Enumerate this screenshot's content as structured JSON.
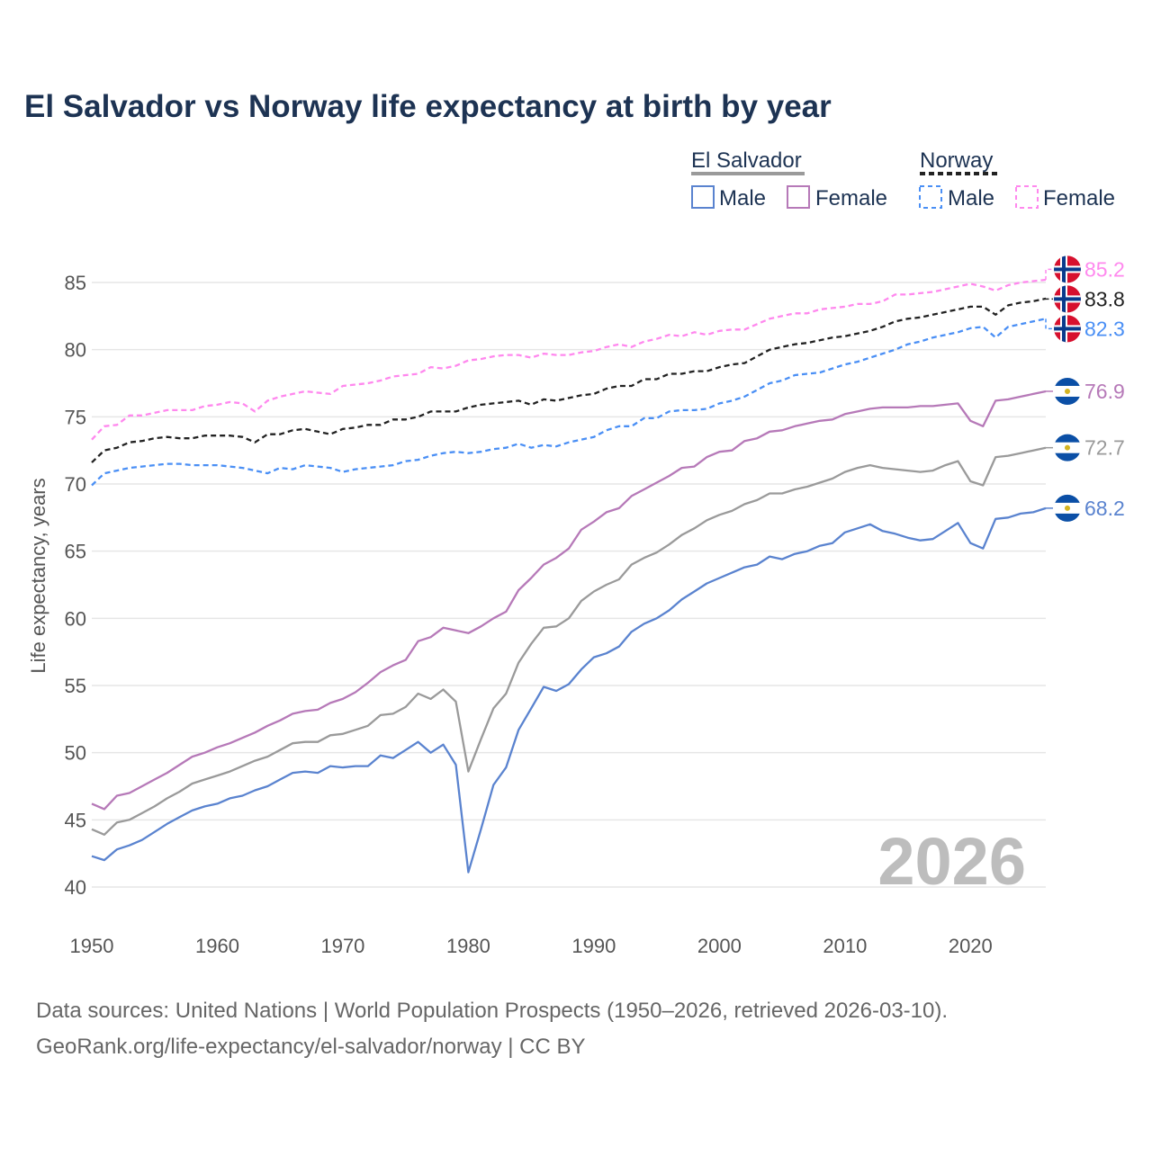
{
  "chart_data": {
    "type": "line",
    "title": "El Salvador vs Norway life expectancy at birth by year",
    "xlabel": "",
    "ylabel": "Life expectancy, years",
    "xlim": [
      1950,
      2026
    ],
    "ylim": [
      40,
      87
    ],
    "x_ticks": [
      1950,
      1960,
      1970,
      1980,
      1990,
      2000,
      2010,
      2020
    ],
    "y_ticks": [
      40,
      45,
      50,
      55,
      60,
      65,
      70,
      75,
      80,
      85
    ],
    "grid": true,
    "year_watermark": "2026",
    "legend": {
      "placement": "top-right",
      "groups": [
        {
          "country": "El Salvador",
          "items": [
            "Male",
            "Female"
          ]
        },
        {
          "country": "Norway",
          "items": [
            "Male",
            "Female"
          ]
        }
      ]
    },
    "x_start": 1950,
    "series": [
      {
        "name": "El Salvador Male",
        "country": "El Salvador",
        "flag": "el-salvador",
        "color": "#5a83cf",
        "dashed": false,
        "end_label": "68.2",
        "values": [
          42.3,
          42.0,
          42.8,
          43.1,
          43.5,
          44.1,
          44.7,
          45.2,
          45.7,
          46.0,
          46.2,
          46.6,
          46.8,
          47.2,
          47.5,
          48.0,
          48.5,
          48.6,
          48.5,
          49.0,
          48.9,
          49.0,
          49.0,
          49.8,
          49.6,
          50.2,
          50.8,
          50.0,
          50.6,
          49.1,
          41.1,
          44.3,
          47.6,
          48.9,
          51.7,
          53.3,
          54.9,
          54.6,
          55.1,
          56.2,
          57.1,
          57.4,
          57.9,
          59.0,
          59.6,
          60.0,
          60.6,
          61.4,
          62.0,
          62.6,
          63.0,
          63.4,
          63.8,
          64.0,
          64.6,
          64.4,
          64.8,
          65.0,
          65.4,
          65.6,
          66.4,
          66.7,
          67.0,
          66.5,
          66.3,
          66.0,
          65.8,
          65.9,
          66.5,
          67.1,
          65.6,
          65.2,
          67.4,
          67.5,
          67.8,
          67.9,
          68.2
        ]
      },
      {
        "name": "El Salvador Female",
        "country": "El Salvador",
        "flag": "el-salvador",
        "color": "#b679b8",
        "dashed": false,
        "end_label": "76.9",
        "values": [
          46.2,
          45.8,
          46.8,
          47.0,
          47.5,
          48.0,
          48.5,
          49.1,
          49.7,
          50.0,
          50.4,
          50.7,
          51.1,
          51.5,
          52.0,
          52.4,
          52.9,
          53.1,
          53.2,
          53.7,
          54.0,
          54.5,
          55.2,
          56.0,
          56.5,
          56.9,
          58.3,
          58.6,
          59.3,
          59.1,
          58.9,
          59.4,
          60.0,
          60.5,
          62.1,
          63.0,
          64.0,
          64.5,
          65.2,
          66.6,
          67.2,
          67.9,
          68.2,
          69.1,
          69.6,
          70.1,
          70.6,
          71.2,
          71.3,
          72.0,
          72.4,
          72.5,
          73.2,
          73.4,
          73.9,
          74.0,
          74.3,
          74.5,
          74.7,
          74.8,
          75.2,
          75.4,
          75.6,
          75.7,
          75.7,
          75.7,
          75.8,
          75.8,
          75.9,
          76.0,
          74.7,
          74.3,
          76.2,
          76.3,
          76.5,
          76.7,
          76.9
        ]
      },
      {
        "name": "El Salvador Total",
        "country": "El Salvador",
        "flag": "el-salvador",
        "color": "#9a9a9a",
        "dashed": false,
        "end_label": "72.7",
        "values": [
          44.3,
          43.9,
          44.8,
          45.0,
          45.5,
          46.0,
          46.6,
          47.1,
          47.7,
          48.0,
          48.3,
          48.6,
          49.0,
          49.4,
          49.7,
          50.2,
          50.7,
          50.8,
          50.8,
          51.3,
          51.4,
          51.7,
          52.0,
          52.8,
          52.9,
          53.4,
          54.4,
          54.0,
          54.7,
          53.8,
          48.6,
          51.0,
          53.3,
          54.4,
          56.7,
          58.1,
          59.3,
          59.4,
          60.0,
          61.3,
          62.0,
          62.5,
          62.9,
          64.0,
          64.5,
          64.9,
          65.5,
          66.2,
          66.7,
          67.3,
          67.7,
          68.0,
          68.5,
          68.8,
          69.3,
          69.3,
          69.6,
          69.8,
          70.1,
          70.4,
          70.9,
          71.2,
          71.4,
          71.2,
          71.1,
          71.0,
          70.9,
          71.0,
          71.4,
          71.7,
          70.2,
          69.9,
          72.0,
          72.1,
          72.3,
          72.5,
          72.7
        ]
      },
      {
        "name": "Norway Male",
        "country": "Norway",
        "flag": "norway",
        "color": "#4a8ff5",
        "dashed": true,
        "end_label": "82.3",
        "values": [
          69.9,
          70.8,
          71.0,
          71.2,
          71.3,
          71.4,
          71.5,
          71.5,
          71.4,
          71.4,
          71.4,
          71.3,
          71.2,
          71.0,
          70.8,
          71.2,
          71.1,
          71.4,
          71.3,
          71.2,
          70.9,
          71.1,
          71.2,
          71.3,
          71.4,
          71.7,
          71.8,
          72.1,
          72.3,
          72.4,
          72.3,
          72.4,
          72.6,
          72.7,
          73.0,
          72.7,
          72.9,
          72.8,
          73.1,
          73.3,
          73.5,
          74.0,
          74.3,
          74.3,
          74.9,
          74.9,
          75.4,
          75.5,
          75.5,
          75.6,
          76.0,
          76.2,
          76.5,
          77.0,
          77.5,
          77.7,
          78.1,
          78.2,
          78.3,
          78.6,
          78.9,
          79.1,
          79.4,
          79.7,
          80.0,
          80.4,
          80.6,
          80.9,
          81.1,
          81.3,
          81.6,
          81.7,
          80.9,
          81.7,
          81.9,
          82.1,
          82.3
        ]
      },
      {
        "name": "Norway Total",
        "country": "Norway",
        "flag": "norway",
        "color": "#222222",
        "dashed": true,
        "end_label": "83.8",
        "values": [
          71.6,
          72.5,
          72.7,
          73.1,
          73.2,
          73.4,
          73.5,
          73.4,
          73.4,
          73.6,
          73.6,
          73.6,
          73.5,
          73.1,
          73.7,
          73.7,
          74.0,
          74.1,
          73.9,
          73.7,
          74.1,
          74.2,
          74.4,
          74.4,
          74.8,
          74.8,
          75.0,
          75.4,
          75.4,
          75.4,
          75.7,
          75.9,
          76.0,
          76.1,
          76.2,
          75.9,
          76.3,
          76.2,
          76.4,
          76.6,
          76.7,
          77.1,
          77.3,
          77.3,
          77.8,
          77.8,
          78.2,
          78.2,
          78.4,
          78.4,
          78.7,
          78.9,
          79.0,
          79.5,
          80.0,
          80.2,
          80.4,
          80.5,
          80.7,
          80.9,
          81.0,
          81.2,
          81.4,
          81.7,
          82.1,
          82.3,
          82.4,
          82.6,
          82.8,
          83.0,
          83.2,
          83.2,
          82.6,
          83.3,
          83.5,
          83.6,
          83.8
        ]
      },
      {
        "name": "Norway Female",
        "country": "Norway",
        "flag": "norway",
        "color": "#ff88ee",
        "dashed": true,
        "end_label": "85.2",
        "values": [
          73.3,
          74.3,
          74.4,
          75.1,
          75.1,
          75.3,
          75.5,
          75.5,
          75.5,
          75.8,
          75.9,
          76.1,
          76.0,
          75.4,
          76.2,
          76.5,
          76.7,
          76.9,
          76.8,
          76.7,
          77.3,
          77.4,
          77.5,
          77.7,
          78.0,
          78.1,
          78.2,
          78.7,
          78.6,
          78.8,
          79.2,
          79.3,
          79.5,
          79.6,
          79.6,
          79.4,
          79.7,
          79.6,
          79.6,
          79.8,
          79.9,
          80.2,
          80.4,
          80.2,
          80.6,
          80.8,
          81.1,
          81.0,
          81.3,
          81.1,
          81.4,
          81.5,
          81.5,
          81.9,
          82.3,
          82.5,
          82.7,
          82.7,
          83.0,
          83.1,
          83.2,
          83.4,
          83.4,
          83.6,
          84.1,
          84.1,
          84.2,
          84.3,
          84.5,
          84.7,
          84.9,
          84.7,
          84.4,
          84.8,
          85.0,
          85.1,
          85.2
        ]
      }
    ]
  },
  "footer": {
    "line1": "Data sources: United Nations | World Population Prospects (1950–2026, retrieved 2026-03-10).",
    "line2": "GeoRank.org/life-expectancy/el-salvador/norway | CC BY"
  }
}
